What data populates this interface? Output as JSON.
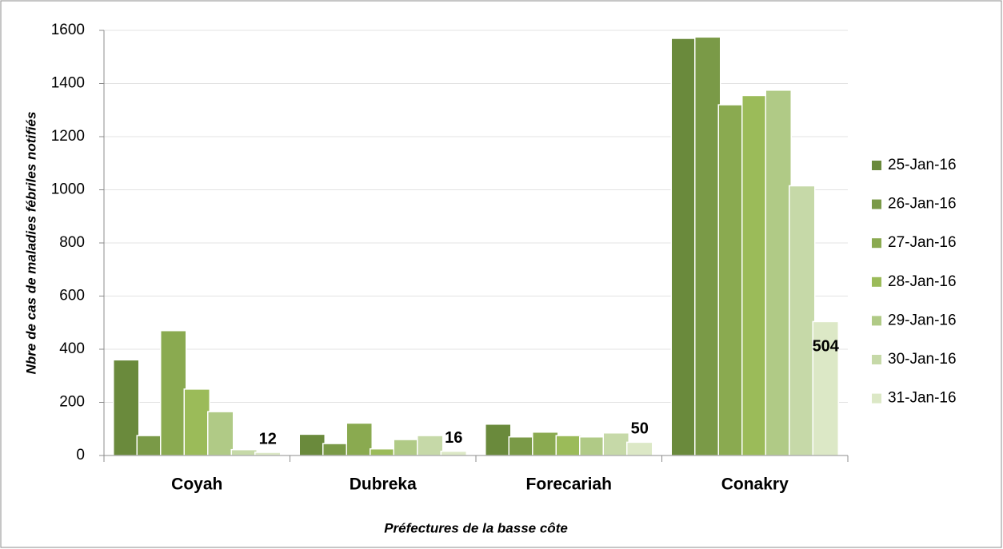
{
  "chart_data": {
    "type": "bar",
    "y_label": "Nbre de cas de maladies fébriles notifiés",
    "x_label": "Préfectures de la basse côte",
    "categories": [
      "Coyah",
      "Dubreka",
      "Forecariah",
      "Conakry"
    ],
    "series": [
      {
        "name": "25-Jan-16",
        "color": "#6a8a3c",
        "values": [
          360,
          80,
          118,
          1570
        ]
      },
      {
        "name": "26-Jan-16",
        "color": "#7a9a47",
        "values": [
          75,
          45,
          70,
          1575
        ]
      },
      {
        "name": "27-Jan-16",
        "color": "#8aaa50",
        "values": [
          470,
          122,
          88,
          1320
        ]
      },
      {
        "name": "28-Jan-16",
        "color": "#9bbb59",
        "values": [
          250,
          25,
          75,
          1355
        ]
      },
      {
        "name": "29-Jan-16",
        "color": "#b0ca86",
        "values": [
          165,
          60,
          70,
          1375
        ]
      },
      {
        "name": "30-Jan-16",
        "color": "#c6d9a8",
        "values": [
          22,
          75,
          85,
          1015
        ]
      },
      {
        "name": "31-Jan-16",
        "color": "#dce8c6",
        "values": [
          12,
          16,
          50,
          504
        ],
        "data_labels": true
      }
    ],
    "ylim": [
      0,
      1600
    ],
    "yticks": [
      0,
      200,
      400,
      600,
      800,
      1000,
      1200,
      1400,
      1600
    ],
    "grid": true,
    "legend": "right"
  }
}
